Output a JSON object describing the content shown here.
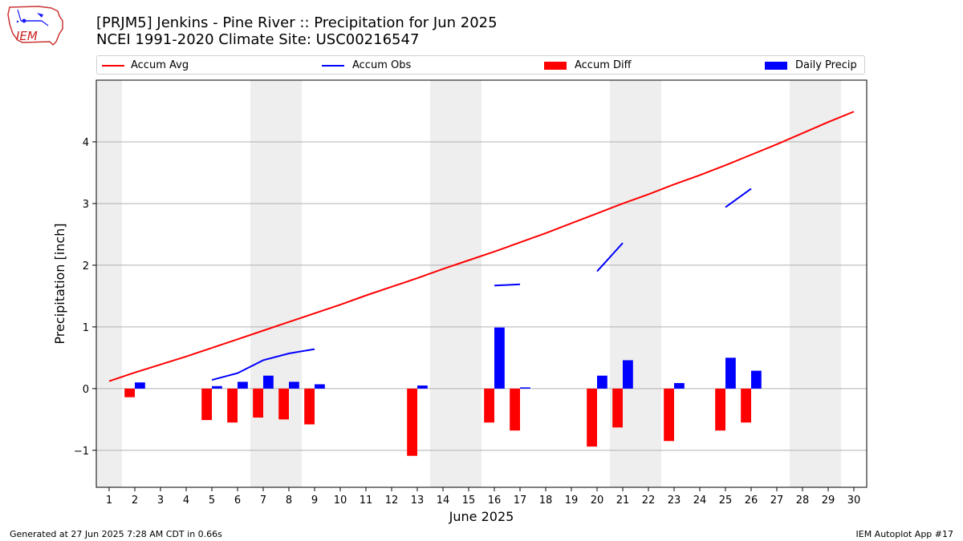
{
  "header": {
    "title_line1": "[PRJM5] Jenkins - Pine River :: Precipitation for Jun 2025",
    "title_line2": "NCEI 1991-2020 Climate Site: USC00216547",
    "logo_text": "IEM"
  },
  "footer": {
    "left": "Generated at 27 Jun 2025 7:28 AM CDT in 0.66s",
    "right": "IEM Autoplot App #17"
  },
  "chart_data": {
    "type": "bar",
    "xlabel": "June 2025",
    "ylabel": "Precipitation [inch]",
    "xlim": [
      0.5,
      30.5
    ],
    "ylim": [
      -1.6,
      5.0
    ],
    "y_ticks": [
      -1,
      0,
      1,
      2,
      3,
      4
    ],
    "y_tick_labels": [
      "−1",
      "0",
      "1",
      "2",
      "3",
      "4"
    ],
    "x": [
      1,
      2,
      3,
      4,
      5,
      6,
      7,
      8,
      9,
      10,
      11,
      12,
      13,
      14,
      15,
      16,
      17,
      18,
      19,
      20,
      21,
      22,
      23,
      24,
      25,
      26,
      27,
      28,
      29,
      30
    ],
    "x_tick_labels": [
      "1",
      "2",
      "3",
      "4",
      "5",
      "6",
      "7",
      "8",
      "9",
      "10",
      "11",
      "12",
      "13",
      "14",
      "15",
      "16",
      "17",
      "18",
      "19",
      "20",
      "21",
      "22",
      "23",
      "24",
      "25",
      "26",
      "27",
      "28",
      "29",
      "30"
    ],
    "grid": "y",
    "weekend_shading": [
      [
        0.5,
        1.5
      ],
      [
        6.5,
        8.5
      ],
      [
        13.5,
        15.5
      ],
      [
        20.5,
        22.5
      ],
      [
        27.5,
        29.5
      ]
    ],
    "legend_placement": "top, above plot",
    "colors": {
      "accum_avg": "#ff0000",
      "accum_obs": "#0000ff",
      "accum_diff": "#ff0000",
      "daily_precip": "#0000ff",
      "weekend_shade": "#eeeeee",
      "grid": "#b0b0b0"
    },
    "series": [
      {
        "name": "Accum Avg",
        "kind": "line",
        "x": [
          1,
          2,
          3,
          4,
          5,
          6,
          7,
          8,
          9,
          10,
          11,
          12,
          13,
          14,
          15,
          16,
          17,
          18,
          19,
          20,
          21,
          22,
          23,
          24,
          25,
          26,
          27,
          28,
          29,
          30
        ],
        "values": [
          0.12,
          0.26,
          0.39,
          0.52,
          0.66,
          0.8,
          0.94,
          1.08,
          1.22,
          1.36,
          1.51,
          1.65,
          1.79,
          1.94,
          2.08,
          2.22,
          2.37,
          2.52,
          2.68,
          2.84,
          3.0,
          3.15,
          3.31,
          3.46,
          3.62,
          3.79,
          3.96,
          4.14,
          4.32,
          4.49
        ]
      },
      {
        "name": "Accum Obs",
        "kind": "line",
        "x": [
          1,
          2,
          3,
          4,
          5,
          6,
          7,
          8,
          9,
          10,
          11,
          12,
          13,
          14,
          15,
          16,
          17,
          18,
          19,
          20,
          21,
          22,
          23,
          24,
          25,
          26,
          27,
          28,
          29,
          30
        ],
        "values": [
          null,
          null,
          null,
          null,
          0.14,
          0.25,
          0.46,
          0.57,
          0.64,
          null,
          null,
          null,
          null,
          null,
          null,
          1.67,
          1.69,
          null,
          null,
          1.9,
          2.36,
          null,
          null,
          null,
          2.94,
          3.24,
          null,
          null,
          null,
          null
        ]
      },
      {
        "name": "Accum Diff",
        "kind": "bar",
        "x": [
          2,
          5,
          6,
          7,
          8,
          9,
          13,
          16,
          17,
          20,
          21,
          23,
          25,
          26
        ],
        "values": [
          -0.14,
          -0.51,
          -0.55,
          -0.47,
          -0.5,
          -0.58,
          -1.09,
          -0.55,
          -0.68,
          -0.94,
          -0.63,
          -0.85,
          -0.68,
          -0.55
        ]
      },
      {
        "name": "Daily Precip",
        "kind": "bar",
        "x": [
          2,
          5,
          6,
          7,
          8,
          9,
          13,
          16,
          17,
          20,
          21,
          23,
          25,
          26
        ],
        "values": [
          0.1,
          0.04,
          0.11,
          0.21,
          0.11,
          0.07,
          0.05,
          0.99,
          0.02,
          0.21,
          0.46,
          0.09,
          0.5,
          0.29
        ]
      }
    ]
  }
}
